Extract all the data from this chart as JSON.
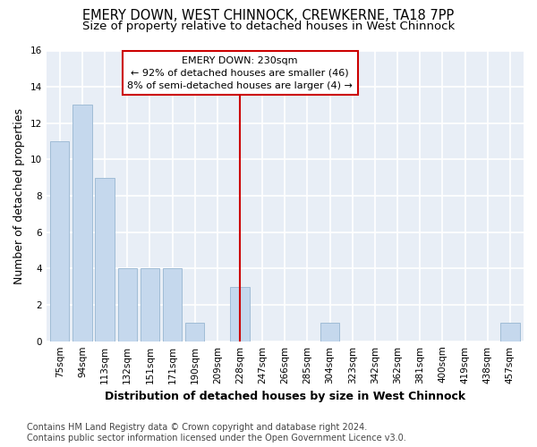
{
  "title": "EMERY DOWN, WEST CHINNOCK, CREWKERNE, TA18 7PP",
  "subtitle": "Size of property relative to detached houses in West Chinnock",
  "xlabel": "Distribution of detached houses by size in West Chinnock",
  "ylabel": "Number of detached properties",
  "categories": [
    "75sqm",
    "94sqm",
    "113sqm",
    "132sqm",
    "151sqm",
    "171sqm",
    "190sqm",
    "209sqm",
    "228sqm",
    "247sqm",
    "266sqm",
    "285sqm",
    "304sqm",
    "323sqm",
    "342sqm",
    "362sqm",
    "381sqm",
    "400sqm",
    "419sqm",
    "438sqm",
    "457sqm"
  ],
  "values": [
    11,
    13,
    9,
    4,
    4,
    4,
    1,
    0,
    3,
    0,
    0,
    0,
    1,
    0,
    0,
    0,
    0,
    0,
    0,
    0,
    1
  ],
  "bar_color": "#c5d8ed",
  "bar_edge_color": "#a0bcd6",
  "marker_label": "EMERY DOWN: 230sqm",
  "annotation_line1": "← 92% of detached houses are smaller (46)",
  "annotation_line2": "8% of semi-detached houses are larger (4) →",
  "annotation_box_color": "#ffffff",
  "annotation_box_edge_color": "#cc0000",
  "vline_color": "#cc0000",
  "vline_x_index": 8,
  "ylim": [
    0,
    16
  ],
  "yticks": [
    0,
    2,
    4,
    6,
    8,
    10,
    12,
    14,
    16
  ],
  "footnote": "Contains HM Land Registry data © Crown copyright and database right 2024.\nContains public sector information licensed under the Open Government Licence v3.0.",
  "background_color": "#e8eef6",
  "grid_color": "#ffffff",
  "title_fontsize": 10.5,
  "subtitle_fontsize": 9.5,
  "axis_label_fontsize": 9,
  "tick_fontsize": 7.5,
  "footnote_fontsize": 7,
  "annot_fontsize": 8
}
